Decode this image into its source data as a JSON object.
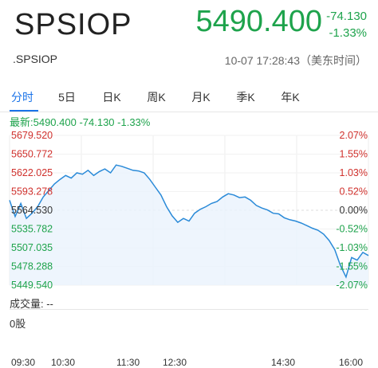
{
  "header": {
    "symbol": "SPSIOP",
    "price": "5490.400",
    "change_abs": "-74.130",
    "change_pct": "-1.33%",
    "code": ".SPSIOP",
    "timestamp": "10-07 17:28:43（美东时间）"
  },
  "tabs": [
    {
      "label": "分时"
    },
    {
      "label": "5日"
    },
    {
      "label": "日K"
    },
    {
      "label": "周K"
    },
    {
      "label": "月K"
    },
    {
      "label": "季K"
    },
    {
      "label": "年K"
    }
  ],
  "latest_line": "最新:5490.400 -74.130 -1.33%",
  "volume": {
    "label": "成交量: --",
    "value": "0股"
  },
  "colors": {
    "up": "#d0312d",
    "down": "#1ea34c",
    "line": "#2a8ad8",
    "accent": "#1a73e8"
  },
  "time_axis": [
    "09:30",
    "10:30",
    "11:30",
    "12:30",
    "14:30",
    "16:00"
  ],
  "chart_data": {
    "type": "line",
    "ylim": [
      5449.54,
      5679.52
    ],
    "y_ticks_left": [
      "5679.520",
      "5650.772",
      "5622.025",
      "5593.278",
      "5564.530",
      "5535.782",
      "5507.035",
      "5478.288",
      "5449.540"
    ],
    "y_ticks_right": [
      "2.07%",
      "1.55%",
      "1.03%",
      "0.52%",
      "0.00%",
      "-0.52%",
      "-1.03%",
      "-1.55%",
      "-2.07%"
    ],
    "x_ticks": [
      "09:30",
      "10:30",
      "11:30",
      "12:30",
      "14:30",
      "16:00"
    ],
    "series": [
      {
        "values": [
          5580,
          5555,
          5575,
          5552,
          5560,
          5570,
          5585,
          5595,
          5605,
          5612,
          5618,
          5614,
          5622,
          5620,
          5626,
          5618,
          5624,
          5628,
          5622,
          5634,
          5632,
          5629,
          5626,
          5625,
          5622,
          5612,
          5600,
          5588,
          5570,
          5556,
          5546,
          5552,
          5548,
          5560,
          5566,
          5570,
          5575,
          5578,
          5585,
          5590,
          5588,
          5584,
          5585,
          5580,
          5572,
          5568,
          5565,
          5560,
          5559,
          5553,
          5550,
          5548,
          5545,
          5541,
          5537,
          5534,
          5528,
          5518,
          5504,
          5480,
          5462,
          5492,
          5488,
          5500,
          5495
        ]
      }
    ]
  }
}
